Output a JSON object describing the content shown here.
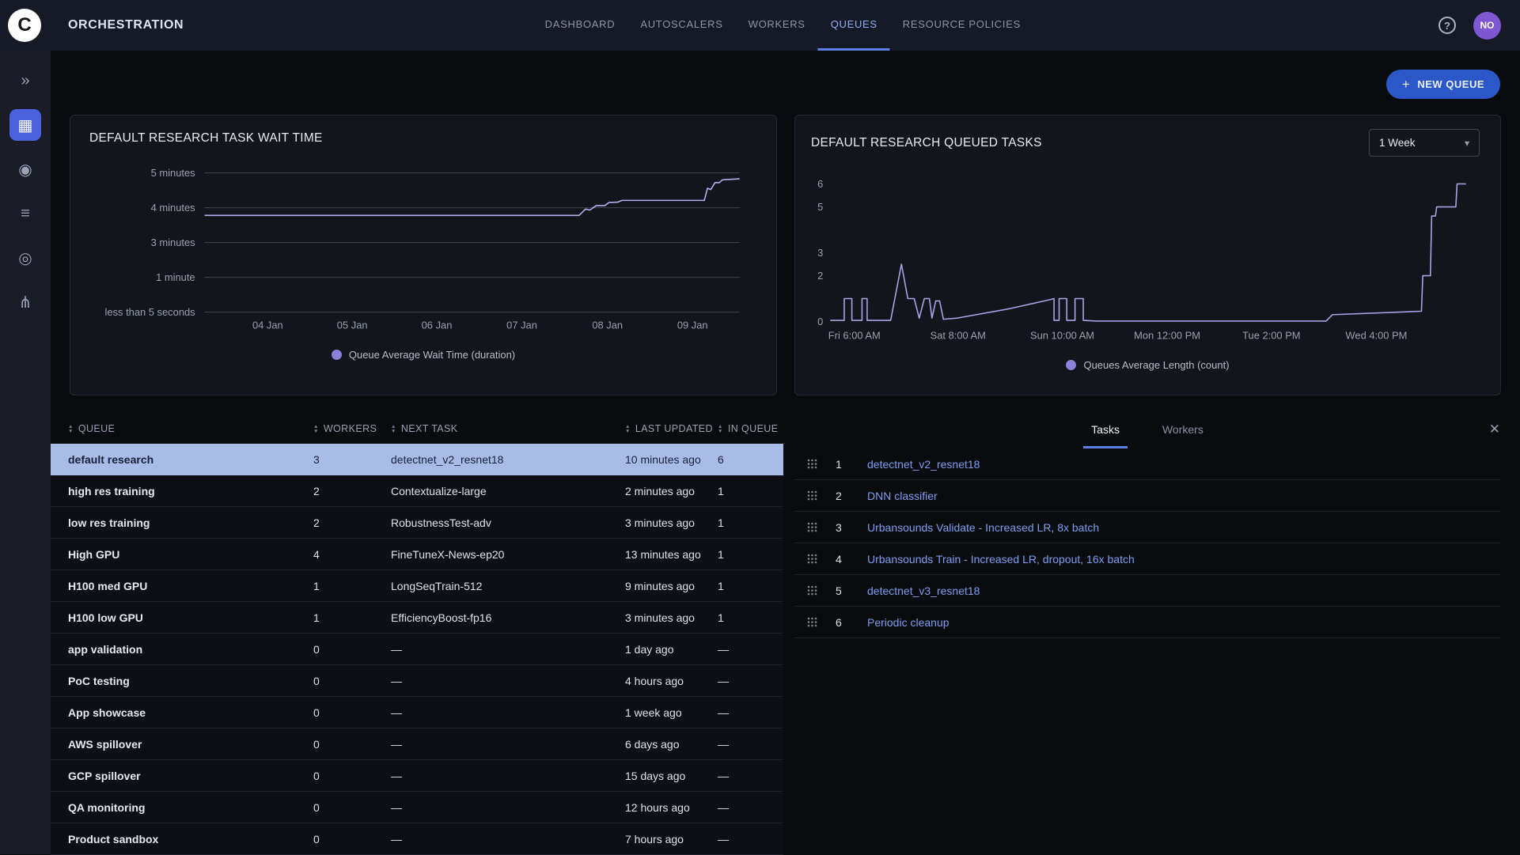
{
  "colors": {
    "accent_blue": "#5c7fe8",
    "nav_active_text": "#8fb0f9",
    "button_blue": "#2b57c8",
    "selected_row_bg": "#a9bce8",
    "selected_row_text": "#19203a",
    "link_blue": "#7d9ff2",
    "avatar_bg": "#7e57d2",
    "sidebar_active": "#4b61dd"
  },
  "header": {
    "title": "ORCHESTRATION",
    "logo_letter": "C",
    "nav": [
      {
        "label": "DASHBOARD",
        "active": false
      },
      {
        "label": "AUTOSCALERS",
        "active": false
      },
      {
        "label": "WORKERS",
        "active": false
      },
      {
        "label": "QUEUES",
        "active": true
      },
      {
        "label": "RESOURCE POLICIES",
        "active": false
      }
    ],
    "help_glyph": "?",
    "avatar_initials": "NO"
  },
  "sidebar": {
    "items": [
      {
        "name": "launch-icon",
        "glyph": "»",
        "active": false
      },
      {
        "name": "queues-icon",
        "glyph": "▦",
        "active": true
      },
      {
        "name": "workers-icon",
        "glyph": "◉",
        "active": false
      },
      {
        "name": "datasets-icon",
        "glyph": "≡",
        "active": false
      },
      {
        "name": "applications-icon",
        "glyph": "◎",
        "active": false
      },
      {
        "name": "pipelines-icon",
        "glyph": "⋔",
        "active": false
      }
    ]
  },
  "toolbar": {
    "new_queue_label": "NEW QUEUE",
    "plus_glyph": "+"
  },
  "icons": {
    "caret": "▾",
    "close": "✕"
  },
  "chart_data": [
    {
      "id": "wait_time",
      "type": "line",
      "title": "DEFAULT RESEARCH TASK WAIT TIME",
      "legend": "Queue Average Wait Time (duration)",
      "line_color": "#b7aeee",
      "legend_dot_color": "#8b80da",
      "y_scale": "ordinal",
      "grid": true,
      "grid_color": "#3e4350",
      "y_ticks": [
        "less than 5 seconds",
        "1 minute",
        "3 minutes",
        "4 minutes",
        "5 minutes"
      ],
      "x_ticks": [
        "04 Jan",
        "05 Jan",
        "06 Jan",
        "07 Jan",
        "08 Jan",
        "09 Jan"
      ],
      "x_tick_pos": [
        0.118,
        0.276,
        0.434,
        0.593,
        0.753,
        0.912
      ],
      "points": [
        [
          0.0,
          2.78
        ],
        [
          0.7,
          2.78
        ],
        [
          0.712,
          2.96
        ],
        [
          0.72,
          2.93
        ],
        [
          0.732,
          3.06
        ],
        [
          0.748,
          3.06
        ],
        [
          0.756,
          3.15
        ],
        [
          0.772,
          3.16
        ],
        [
          0.78,
          3.21
        ],
        [
          0.934,
          3.21
        ],
        [
          0.94,
          3.56
        ],
        [
          0.946,
          3.52
        ],
        [
          0.954,
          3.72
        ],
        [
          0.962,
          3.72
        ],
        [
          0.968,
          3.8
        ],
        [
          1.0,
          3.83
        ]
      ]
    },
    {
      "id": "queued_tasks",
      "type": "line",
      "title": "DEFAULT RESEARCH QUEUED TASKS",
      "legend": "Queues Average Length (count)",
      "range_selector": "1 Week",
      "line_color": "#aaa3e8",
      "legend_dot_color": "#8b80da",
      "y_scale": "linear",
      "y_range": [
        0,
        6
      ],
      "grid": false,
      "y_ticks": [
        0,
        2,
        3,
        5,
        6
      ],
      "x_ticks": [
        "Fri 6:00 AM",
        "Sat 8:00 AM",
        "Sun 10:00 AM",
        "Mon 12:00 PM",
        "Tue 2:00 PM",
        "Wed 4:00 PM"
      ],
      "x_tick_pos": [
        0.038,
        0.201,
        0.365,
        0.53,
        0.694,
        0.859
      ],
      "points": [
        [
          0.0,
          0.05
        ],
        [
          0.022,
          0.05
        ],
        [
          0.022,
          1
        ],
        [
          0.034,
          1
        ],
        [
          0.034,
          0.05
        ],
        [
          0.05,
          0.05
        ],
        [
          0.05,
          1
        ],
        [
          0.058,
          1
        ],
        [
          0.058,
          0.05
        ],
        [
          0.095,
          0.05
        ],
        [
          0.112,
          2.5
        ],
        [
          0.122,
          1
        ],
        [
          0.132,
          1
        ],
        [
          0.14,
          0.15
        ],
        [
          0.148,
          1
        ],
        [
          0.156,
          1
        ],
        [
          0.16,
          0.15
        ],
        [
          0.166,
          0.9
        ],
        [
          0.172,
          0.9
        ],
        [
          0.178,
          0.1
        ],
        [
          0.2,
          0.15
        ],
        [
          0.28,
          0.55
        ],
        [
          0.345,
          0.95
        ],
        [
          0.352,
          1
        ],
        [
          0.352,
          0.05
        ],
        [
          0.36,
          0.05
        ],
        [
          0.36,
          1
        ],
        [
          0.372,
          1
        ],
        [
          0.372,
          0.05
        ],
        [
          0.385,
          0.05
        ],
        [
          0.385,
          1
        ],
        [
          0.398,
          1
        ],
        [
          0.398,
          0.05
        ],
        [
          0.42,
          0.02
        ],
        [
          0.78,
          0.02
        ],
        [
          0.79,
          0.3
        ],
        [
          0.93,
          0.45
        ],
        [
          0.932,
          2
        ],
        [
          0.944,
          2
        ],
        [
          0.946,
          4.6
        ],
        [
          0.952,
          4.6
        ],
        [
          0.954,
          5
        ],
        [
          0.984,
          5
        ],
        [
          0.986,
          6
        ],
        [
          1.0,
          6
        ]
      ]
    }
  ],
  "queue_table": {
    "columns": [
      "QUEUE",
      "WORKERS",
      "NEXT TASK",
      "LAST UPDATED",
      "IN QUEUE"
    ],
    "rows": [
      {
        "queue": "default research",
        "workers": "3",
        "next_task": "detectnet_v2_resnet18",
        "last_updated": "10 minutes ago",
        "in_queue": "6",
        "selected": true
      },
      {
        "queue": "high res training",
        "workers": "2",
        "next_task": "Contextualize-large",
        "last_updated": "2 minutes ago",
        "in_queue": "1",
        "selected": false
      },
      {
        "queue": "low res training",
        "workers": "2",
        "next_task": "RobustnessTest-adv",
        "last_updated": "3 minutes ago",
        "in_queue": "1",
        "selected": false
      },
      {
        "queue": "High GPU",
        "workers": "4",
        "next_task": "FineTuneX-News-ep20",
        "last_updated": "13 minutes ago",
        "in_queue": "1",
        "selected": false
      },
      {
        "queue": "H100 med GPU",
        "workers": "1",
        "next_task": "LongSeqTrain-512",
        "last_updated": "9 minutes ago",
        "in_queue": "1",
        "selected": false
      },
      {
        "queue": "H100 low GPU",
        "workers": "1",
        "next_task": "EfficiencyBoost-fp16",
        "last_updated": "3 minutes ago",
        "in_queue": "1",
        "selected": false
      },
      {
        "queue": "app validation",
        "workers": "0",
        "next_task": "—",
        "last_updated": "1 day ago",
        "in_queue": "—",
        "selected": false
      },
      {
        "queue": "PoC testing",
        "workers": "0",
        "next_task": "—",
        "last_updated": "4 hours ago",
        "in_queue": "—",
        "selected": false
      },
      {
        "queue": "App showcase",
        "workers": "0",
        "next_task": "—",
        "last_updated": "1 week ago",
        "in_queue": "—",
        "selected": false
      },
      {
        "queue": "AWS spillover",
        "workers": "0",
        "next_task": "—",
        "last_updated": "6 days ago",
        "in_queue": "—",
        "selected": false
      },
      {
        "queue": "GCP spillover",
        "workers": "0",
        "next_task": "—",
        "last_updated": "15 days ago",
        "in_queue": "—",
        "selected": false
      },
      {
        "queue": "QA monitoring",
        "workers": "0",
        "next_task": "—",
        "last_updated": "12 hours ago",
        "in_queue": "—",
        "selected": false
      },
      {
        "queue": "Product sandbox",
        "workers": "0",
        "next_task": "—",
        "last_updated": "7 hours ago",
        "in_queue": "—",
        "selected": false
      }
    ]
  },
  "detail_panel": {
    "tabs": [
      {
        "label": "Tasks",
        "active": true
      },
      {
        "label": "Workers",
        "active": false
      }
    ],
    "tasks": [
      {
        "index": "1",
        "name": "detectnet_v2_resnet18"
      },
      {
        "index": "2",
        "name": "DNN classifier"
      },
      {
        "index": "3",
        "name": "Urbansounds Validate - Increased LR, 8x batch"
      },
      {
        "index": "4",
        "name": "Urbansounds Train - Increased LR, dropout, 16x batch"
      },
      {
        "index": "5",
        "name": "detectnet_v3_resnet18"
      },
      {
        "index": "6",
        "name": "Periodic cleanup"
      }
    ]
  }
}
